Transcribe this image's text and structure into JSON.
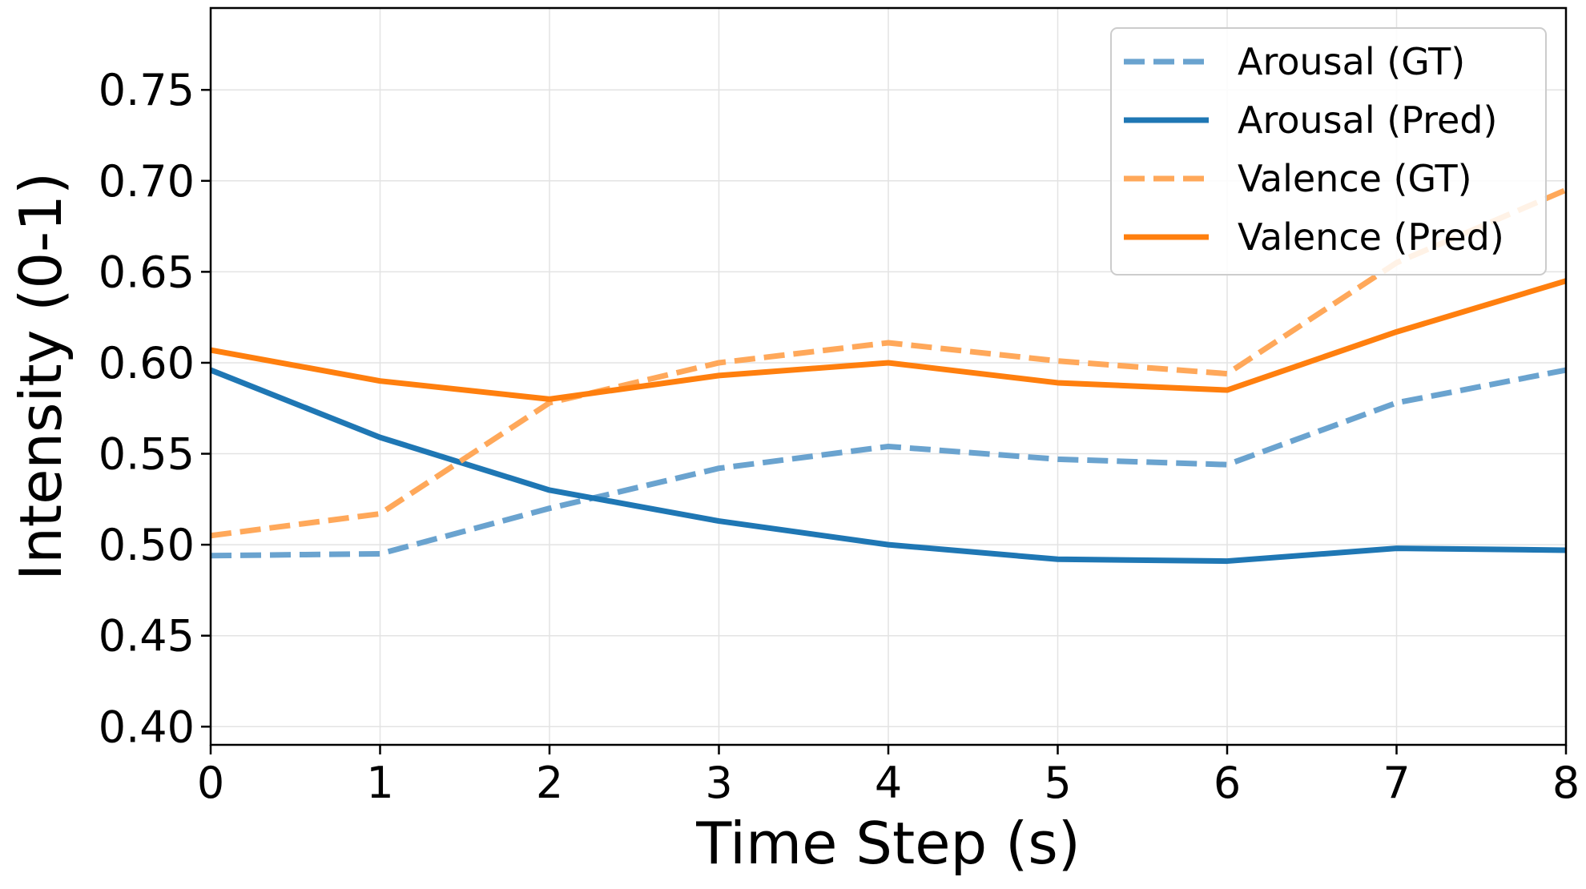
{
  "chart_data": {
    "type": "line",
    "xlabel": "Time Step (s)",
    "ylabel": "Intensity (0-1)",
    "x": [
      0,
      1,
      2,
      3,
      4,
      5,
      6,
      7,
      8
    ],
    "xlim": [
      0,
      8
    ],
    "ylim": [
      0.39,
      0.795
    ],
    "xticks": [
      0,
      1,
      2,
      3,
      4,
      5,
      6,
      7,
      8
    ],
    "yticks": [
      0.4,
      0.45,
      0.5,
      0.55,
      0.6,
      0.65,
      0.7,
      0.75
    ],
    "ytick_labels": [
      "0.40",
      "0.45",
      "0.50",
      "0.55",
      "0.60",
      "0.65",
      "0.70",
      "0.75"
    ],
    "grid": true,
    "legend_position": "top-right",
    "series": [
      {
        "name": "Arousal (GT)",
        "color": "#6aa3cf",
        "style": "dashed",
        "values": [
          0.494,
          0.495,
          0.52,
          0.542,
          0.554,
          0.547,
          0.544,
          0.578,
          0.596
        ]
      },
      {
        "name": "Arousal (Pred)",
        "color": "#1f77b4",
        "style": "solid",
        "values": [
          0.596,
          0.559,
          0.53,
          0.513,
          0.5,
          0.492,
          0.491,
          0.498,
          0.497
        ]
      },
      {
        "name": "Valence (GT)",
        "color": "#ffa85a",
        "style": "dashed",
        "values": [
          0.505,
          0.517,
          0.578,
          0.6,
          0.611,
          0.601,
          0.594,
          0.655,
          0.695
        ]
      },
      {
        "name": "Valence (Pred)",
        "color": "#ff7f0e",
        "style": "solid",
        "values": [
          0.607,
          0.59,
          0.58,
          0.593,
          0.6,
          0.589,
          0.585,
          0.617,
          0.645
        ]
      }
    ]
  }
}
